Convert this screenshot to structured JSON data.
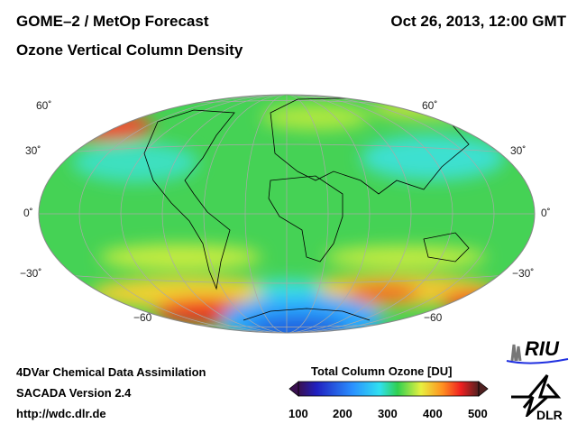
{
  "header": {
    "title": "GOME–2 / MetOp Forecast",
    "subtitle": "Ozone Vertical Column Density",
    "datetime": "Oct 26, 2013, 12:00 GMT"
  },
  "map": {
    "projection": "Hammer-Aitoff",
    "lat_labels_left": [
      "60˚",
      "30˚",
      "0˚",
      "−30˚",
      "−60"
    ],
    "lat_labels_right": [
      "60˚",
      "30˚",
      "0˚",
      "−30˚",
      "−60"
    ]
  },
  "footer": {
    "line1": "4DVar Chemical Data Assimilation",
    "line2": "SACADA Version 2.4",
    "line3": "http://wdc.dlr.de"
  },
  "colorbar": {
    "title": "Total Column Ozone [DU]",
    "ticks": [
      "100",
      "200",
      "300",
      "400",
      "500"
    ],
    "min": 100,
    "max": 500,
    "colors": [
      "#3a1050",
      "#2020c0",
      "#2a90ff",
      "#30e0f0",
      "#30d050",
      "#e8f040",
      "#ff9020",
      "#f02020",
      "#502020"
    ]
  },
  "logos": {
    "riu": "RIU",
    "dlr": "DLR"
  }
}
